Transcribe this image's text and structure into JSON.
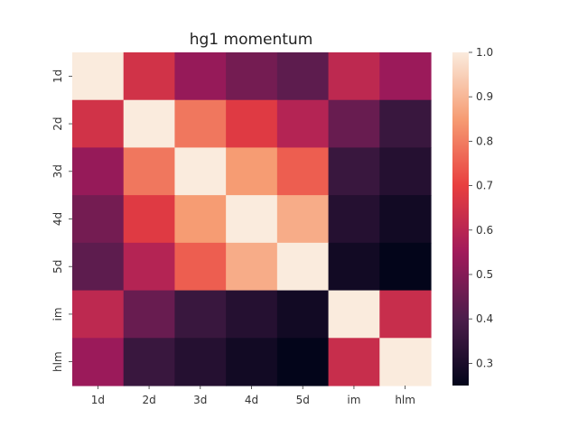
{
  "chart_data": {
    "type": "heatmap",
    "title": "hg1 momentum",
    "xlabel": "",
    "ylabel": "",
    "x_categories": [
      "1d",
      "2d",
      "3d",
      "4d",
      "5d",
      "im",
      "hlm"
    ],
    "y_categories": [
      "1d",
      "2d",
      "3d",
      "4d",
      "5d",
      "im",
      "hlm"
    ],
    "values": [
      [
        1.0,
        0.65,
        0.53,
        0.47,
        0.43,
        0.61,
        0.54
      ],
      [
        0.65,
        1.0,
        0.79,
        0.68,
        0.59,
        0.45,
        0.36
      ],
      [
        0.53,
        0.79,
        1.0,
        0.85,
        0.75,
        0.36,
        0.32
      ],
      [
        0.47,
        0.68,
        0.85,
        1.0,
        0.88,
        0.32,
        0.28
      ],
      [
        0.43,
        0.59,
        0.75,
        0.88,
        1.0,
        0.28,
        0.25
      ],
      [
        0.61,
        0.45,
        0.36,
        0.32,
        0.28,
        1.0,
        0.63
      ],
      [
        0.54,
        0.36,
        0.32,
        0.28,
        0.25,
        0.63,
        1.0
      ]
    ],
    "vmin": 0.25,
    "vmax": 1.0,
    "colorbar_ticks": [
      "0.3",
      "0.4",
      "0.5",
      "0.6",
      "0.7",
      "0.8",
      "0.9",
      "1.0"
    ],
    "colormap": "rocket",
    "colormap_stops": [
      "#03051a",
      "#4c1d4b",
      "#a11a5b",
      "#e83f3f",
      "#f69c73",
      "#faebdd"
    ],
    "grid": false
  }
}
